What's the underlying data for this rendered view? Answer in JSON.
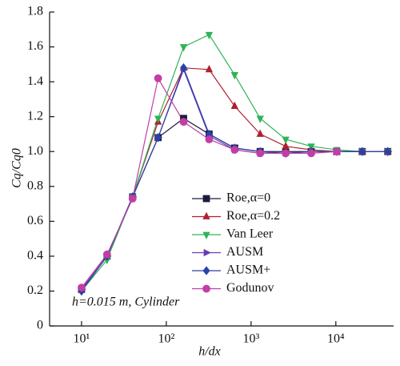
{
  "chart_data": {
    "type": "line",
    "x_label": "h/dx",
    "y_label": "Cq/Cq0",
    "annotation": "h=0.015 m, Cylinder",
    "log_x": true,
    "x": [
      10,
      20,
      40,
      80,
      160,
      320,
      640,
      1280,
      2560,
      5120,
      10240,
      20480,
      40960
    ],
    "series": [
      {
        "name": "Roe,α=0",
        "color": "#1c1c40",
        "marker": "square",
        "values": [
          0.21,
          0.4,
          0.74,
          1.08,
          1.19,
          1.1,
          1.02,
          1.0,
          1.0,
          1.0,
          1.0,
          1.0,
          1.0
        ]
      },
      {
        "name": "Roe,α=0.2",
        "color": "#b0202e",
        "marker": "triangle-up",
        "values": [
          0.21,
          0.4,
          0.74,
          1.17,
          1.48,
          1.47,
          1.26,
          1.1,
          1.03,
          1.01,
          1.0,
          1.0,
          1.0
        ]
      },
      {
        "name": "Van Leer",
        "color": "#2fb356",
        "marker": "triangle-down",
        "values": [
          0.2,
          0.38,
          0.74,
          1.19,
          1.6,
          1.67,
          1.44,
          1.19,
          1.07,
          1.03,
          1.01,
          1.0,
          1.0
        ]
      },
      {
        "name": "AUSM",
        "color": "#6a3cb4",
        "marker": "triangle-right",
        "values": [
          0.21,
          0.4,
          0.74,
          1.08,
          1.47,
          1.09,
          1.01,
          0.99,
          0.99,
          1.0,
          1.0,
          1.0,
          1.0
        ]
      },
      {
        "name": "AUSM+",
        "color": "#2a42a8",
        "marker": "diamond",
        "values": [
          0.2,
          0.4,
          0.74,
          1.08,
          1.48,
          1.1,
          1.02,
          1.0,
          0.99,
          1.0,
          1.0,
          1.0,
          1.0
        ]
      },
      {
        "name": "Godunov",
        "color": "#c23ea6",
        "marker": "circle",
        "values": [
          0.22,
          0.41,
          0.73,
          1.42,
          1.17,
          1.07,
          1.01,
          0.99,
          0.99,
          0.99,
          1.0,
          null,
          null
        ]
      }
    ],
    "xlim": [
      4.2,
      48000
    ],
    "xticks": [
      {
        "value": 10,
        "label": "10¹"
      },
      {
        "value": 100,
        "label": "10²"
      },
      {
        "value": 1000,
        "label": "10³"
      },
      {
        "value": 10000,
        "label": "10⁴"
      }
    ],
    "ylim": [
      0,
      1.8
    ],
    "yticks": [
      0,
      0.2,
      0.4,
      0.6,
      0.8,
      {
        "value": 1,
        "label": "1.0"
      },
      1.2,
      1.4,
      1.6,
      1.8
    ]
  }
}
